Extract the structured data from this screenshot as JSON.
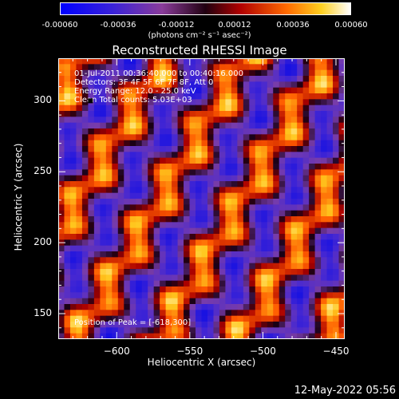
{
  "colorbar": {
    "ticks": [
      "-0.00060",
      "-0.00036",
      "-0.00012",
      "0.00012",
      "0.00036",
      "0.00060"
    ],
    "units": "(photons cm⁻² s⁻¹ asec⁻²)",
    "range": [
      -0.0006,
      0.0006
    ]
  },
  "chart_data": {
    "type": "heatmap",
    "title": "Reconstructed RHESSI Image",
    "xlabel": "Heliocentric X (arcsec)",
    "ylabel": "Heliocentric Y (arcsec)",
    "xlim": [
      -640,
      -444
    ],
    "ylim": [
      132,
      330
    ],
    "xticks": [
      "−600",
      "−550",
      "−500",
      "−450"
    ],
    "yticks": [
      "150",
      "200",
      "250",
      "300"
    ],
    "info_lines": [
      "01-Jul-2011 00:36:40.000 to 00:40:16.000",
      "Detectors: 3F 4F 5F 6F 7F 8F, Att 0",
      "Energy Range: 12.0 - 25.0 keV",
      "Clean     Total counts: 5.03E+03"
    ],
    "peak_label": "Position of Peak = [-618,300]",
    "peak": [
      -618,
      300
    ]
  },
  "footer": {
    "timestamp": "12-May-2022 05:56"
  }
}
